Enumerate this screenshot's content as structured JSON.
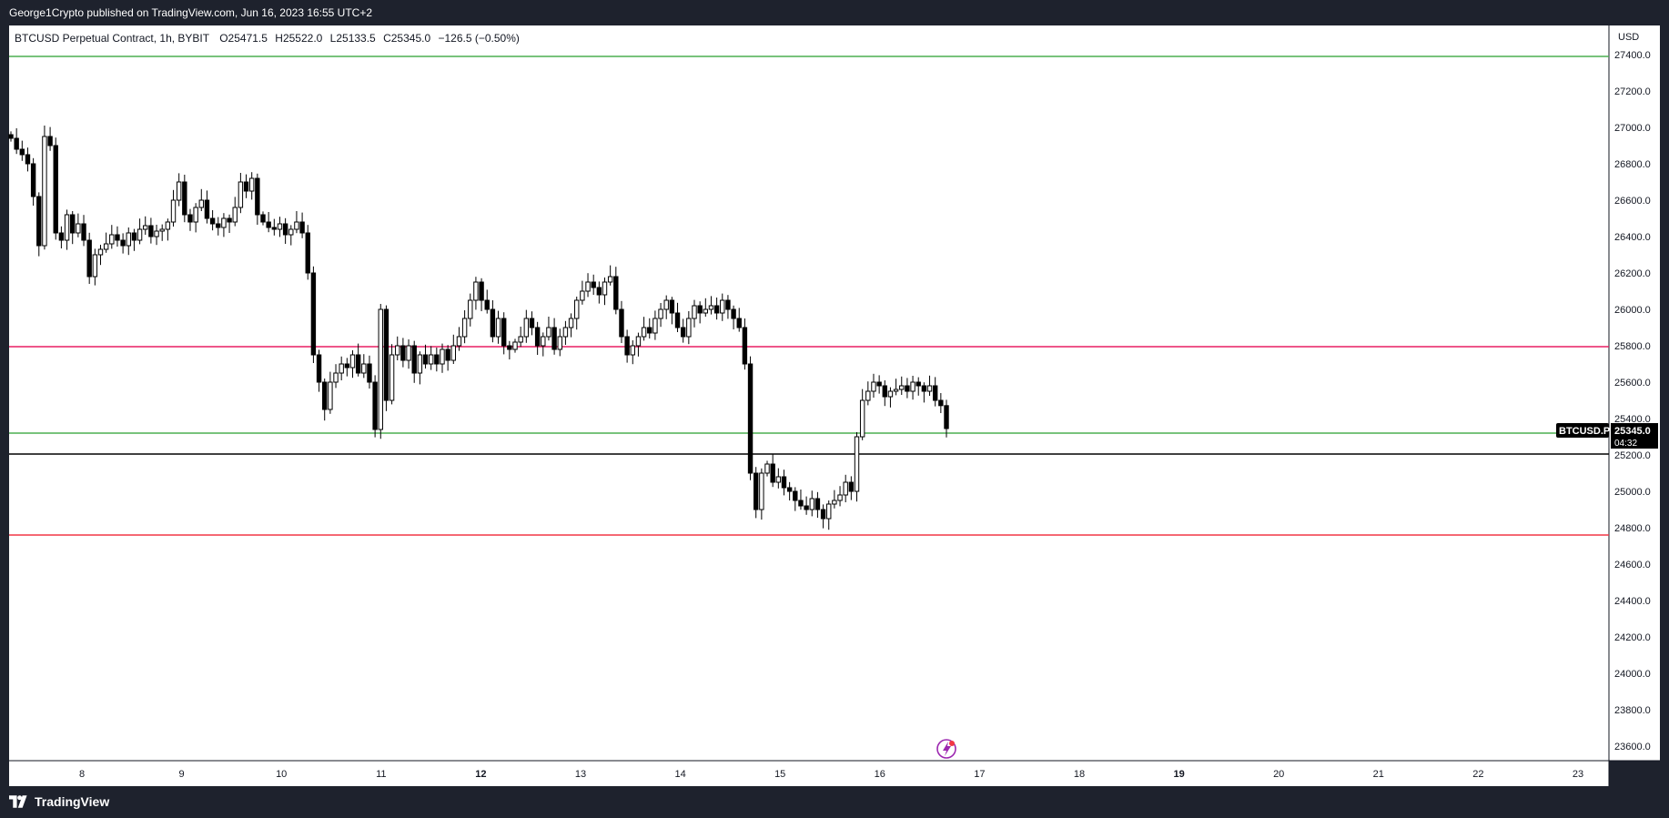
{
  "header": {
    "publish_line": "George1Crypto published on TradingView.com, Jun 16, 2023 16:55 UTC+2"
  },
  "footer": {
    "brand": "TradingView"
  },
  "legend": {
    "symbol_line": "BTCUSD Perpetual Contract, 1h, BYBIT",
    "open": "O25471.5",
    "high": "H25522.0",
    "low": "L25133.5",
    "close": "C25345.0",
    "change": "−126.5 (−0.50%)"
  },
  "price_axis": {
    "currency": "USD",
    "ticks": [
      "27400.0",
      "27200.0",
      "27000.0",
      "26800.0",
      "26600.0",
      "26400.0",
      "26200.0",
      "26000.0",
      "25800.0",
      "25600.0",
      "25400.0",
      "25200.0",
      "25000.0",
      "24800.0",
      "24600.0",
      "24400.0",
      "24200.0",
      "24000.0",
      "23800.0",
      "23600.0"
    ]
  },
  "price_tag": {
    "symbol": "BTCUSD.P",
    "price": "25345.0",
    "countdown": "04:32"
  },
  "colors": {
    "green_line": "#4caf50",
    "pink_line": "#e91e63",
    "red_line": "#f23645",
    "black_line": "#000000",
    "candle": "#000000",
    "event_icon": "#9c27b0"
  },
  "chart_data": {
    "type": "candlestick",
    "timeframe": "1h",
    "ylim": [
      23520,
      27560
    ],
    "x_ticks": [
      {
        "label": "8",
        "day": 8,
        "bold": false
      },
      {
        "label": "9",
        "day": 9,
        "bold": false
      },
      {
        "label": "10",
        "day": 10,
        "bold": false
      },
      {
        "label": "11",
        "day": 11,
        "bold": false
      },
      {
        "label": "12",
        "day": 12,
        "bold": true
      },
      {
        "label": "13",
        "day": 13,
        "bold": false
      },
      {
        "label": "14",
        "day": 14,
        "bold": false
      },
      {
        "label": "15",
        "day": 15,
        "bold": false
      },
      {
        "label": "16",
        "day": 16,
        "bold": false
      },
      {
        "label": "17",
        "day": 17,
        "bold": false
      },
      {
        "label": "18",
        "day": 18,
        "bold": false
      },
      {
        "label": "19",
        "day": 19,
        "bold": true
      },
      {
        "label": "20",
        "day": 20,
        "bold": false
      },
      {
        "label": "21",
        "day": 21,
        "bold": false
      },
      {
        "label": "22",
        "day": 22,
        "bold": false
      },
      {
        "label": "23",
        "day": 23,
        "bold": false
      }
    ],
    "horizontal_lines": [
      {
        "price": 27390,
        "color": "green"
      },
      {
        "price": 25795,
        "color": "pink"
      },
      {
        "price": 25320,
        "color": "green"
      },
      {
        "price": 25205,
        "color": "black"
      },
      {
        "price": 24760,
        "color": "red"
      }
    ],
    "closes": [
      26940,
      26880,
      26850,
      26800,
      26620,
      26350,
      26950,
      26900,
      26420,
      26380,
      26520,
      26420,
      26470,
      26380,
      26180,
      26300,
      26330,
      26360,
      26410,
      26380,
      26350,
      26420,
      26380,
      26440,
      26460,
      26400,
      26430,
      26440,
      26480,
      26600,
      26700,
      26520,
      26480,
      26560,
      26600,
      26500,
      26470,
      26450,
      26500,
      26480,
      26560,
      26700,
      26650,
      26720,
      26520,
      26480,
      26450,
      26440,
      26470,
      26410,
      26440,
      26480,
      26420,
      26200,
      25750,
      25600,
      25450,
      25600,
      25650,
      25700,
      25680,
      25750,
      25650,
      25700,
      25600,
      25340,
      26000,
      25500,
      25750,
      25800,
      25720,
      25800,
      25650,
      25750,
      25700,
      25750,
      25700,
      25780,
      25720,
      25800,
      25850,
      25950,
      26050,
      26150,
      26050,
      26000,
      25850,
      25950,
      25800,
      25780,
      25820,
      25850,
      25950,
      25900,
      25800,
      25850,
      25900,
      25780,
      25850,
      25900,
      25950,
      26050,
      26100,
      26150,
      26120,
      26080,
      26150,
      26180,
      26000,
      25850,
      25750,
      25800,
      25850,
      25900,
      25870,
      25950,
      26000,
      26050,
      25980,
      25900,
      25850,
      25950,
      26020,
      25980,
      26000,
      26020,
      25980,
      26050,
      26000,
      25950,
      25900,
      25700,
      25100,
      24900,
      25100,
      25150,
      25050,
      25080,
      25020,
      25000,
      24950,
      24920,
      24900,
      24960,
      24900,
      24850,
      24930,
      24950,
      24980,
      25050,
      25000,
      25300,
      25500,
      25550,
      25600,
      25580,
      25520,
      25550,
      25560,
      25580,
      25550,
      25600,
      25580,
      25550,
      25580,
      25500,
      25471,
      25345
    ]
  }
}
